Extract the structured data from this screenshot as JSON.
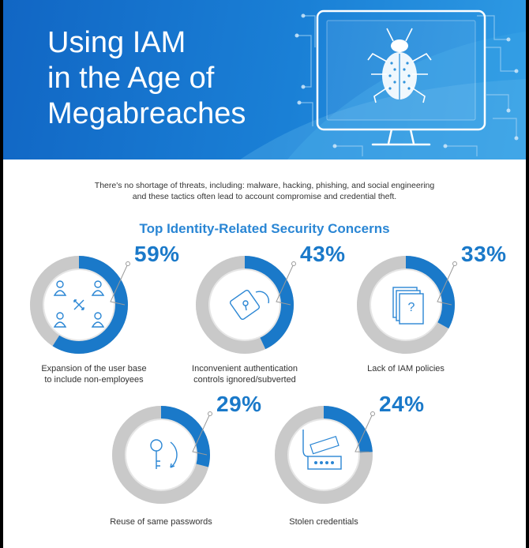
{
  "header": {
    "title_lines": [
      "Using IAM",
      "in the Age of",
      "Megabreaches"
    ],
    "icon": "computer-bug-icon"
  },
  "intro": {
    "line1": "There's no shortage of threats, including: malware, hacking, phishing, and social engineering",
    "line2": "and these tactics often lead to account compromise and credential theft."
  },
  "chart_data": {
    "type": "pie",
    "title": "Top Identity-Related Security Concerns",
    "unit": "%",
    "categories": [
      "Expansion of the user base to include non-employees",
      "Inconvenient authentication controls ignored/subverted",
      "Lack of IAM policies",
      "Reuse of same passwords",
      "Stolen credentials"
    ],
    "values": [
      59,
      43,
      33,
      29,
      24
    ],
    "items": [
      {
        "value": 59,
        "label": "59%",
        "caption_lines": [
          "Expansion of the user base",
          "to include non-employees"
        ],
        "icon": "people-network-icon"
      },
      {
        "value": 43,
        "label": "43%",
        "caption_lines": [
          "Inconvenient authentication",
          "controls ignored/subverted"
        ],
        "icon": "broken-lock-icon"
      },
      {
        "value": 33,
        "label": "33%",
        "caption_lines": [
          "Lack of IAM policies"
        ],
        "icon": "documents-question-icon"
      },
      {
        "value": 29,
        "label": "29%",
        "caption_lines": [
          "Reuse of same passwords"
        ],
        "icon": "key-reuse-icon"
      },
      {
        "value": 24,
        "label": "24%",
        "caption_lines": [
          "Stolen credentials"
        ],
        "icon": "password-hook-icon"
      }
    ],
    "colors": {
      "filled": "#1a79c9",
      "track": "#c9c9c9",
      "leader": "#9a9a9a",
      "icon": "#2a86d4"
    }
  }
}
